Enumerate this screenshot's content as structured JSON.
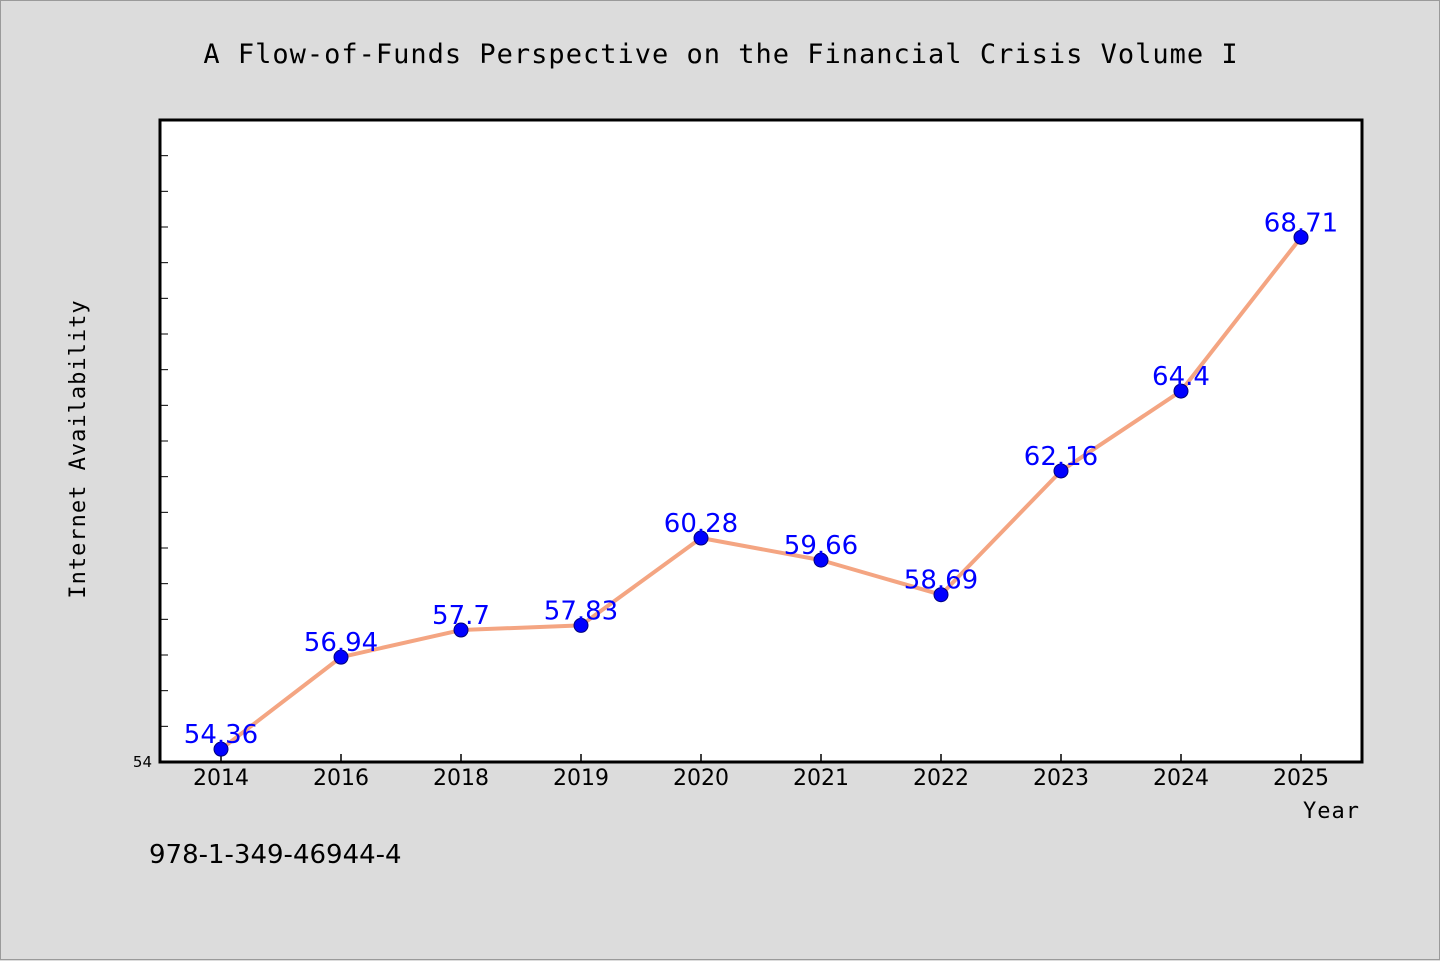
{
  "chart_data": {
    "type": "line",
    "title": "A Flow-of-Funds Perspective on the Financial Crisis Volume I",
    "xlabel": "Year",
    "ylabel": "Internet Availability",
    "categories": [
      "2014",
      "2016",
      "2018",
      "2019",
      "2020",
      "2021",
      "2022",
      "2023",
      "2024",
      "2025"
    ],
    "series": [
      {
        "values": [
          54.36,
          56.94,
          57.7,
          57.83,
          60.28,
          59.66,
          58.69,
          62.16,
          64.4,
          68.71
        ]
      }
    ],
    "y_tick_labels": [
      "54"
    ],
    "ylim": [
      54,
      72
    ],
    "grid": false,
    "line_color": "#f4a582",
    "marker_color": "#0000ff",
    "data_label_color": "#0000ff"
  },
  "footer": {
    "isbn": "978-1-349-46944-4"
  }
}
